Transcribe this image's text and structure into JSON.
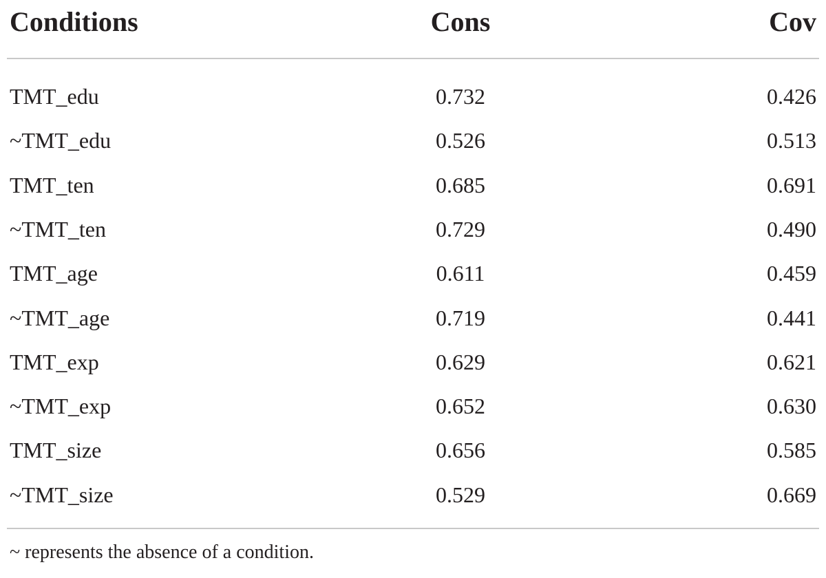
{
  "table": {
    "header": [
      "Conditions",
      "Cons",
      "Cov"
    ],
    "rows": [
      [
        "TMT_edu",
        "0.732",
        "0.426"
      ],
      [
        "~TMT_edu",
        "0.526",
        "0.513"
      ],
      [
        "TMT_ten",
        "0.685",
        "0.691"
      ],
      [
        "~TMT_ten",
        "0.729",
        "0.490"
      ],
      [
        "TMT_age",
        "0.611",
        "0.459"
      ],
      [
        "~TMT_age",
        "0.719",
        "0.441"
      ],
      [
        "TMT_exp",
        "0.629",
        "0.621"
      ],
      [
        "~TMT_exp",
        "0.652",
        "0.630"
      ],
      [
        "TMT_size",
        "0.656",
        "0.585"
      ],
      [
        "~TMT_size",
        "0.529",
        "0.669"
      ]
    ],
    "footnote": "~ represents the absence of a condition."
  }
}
